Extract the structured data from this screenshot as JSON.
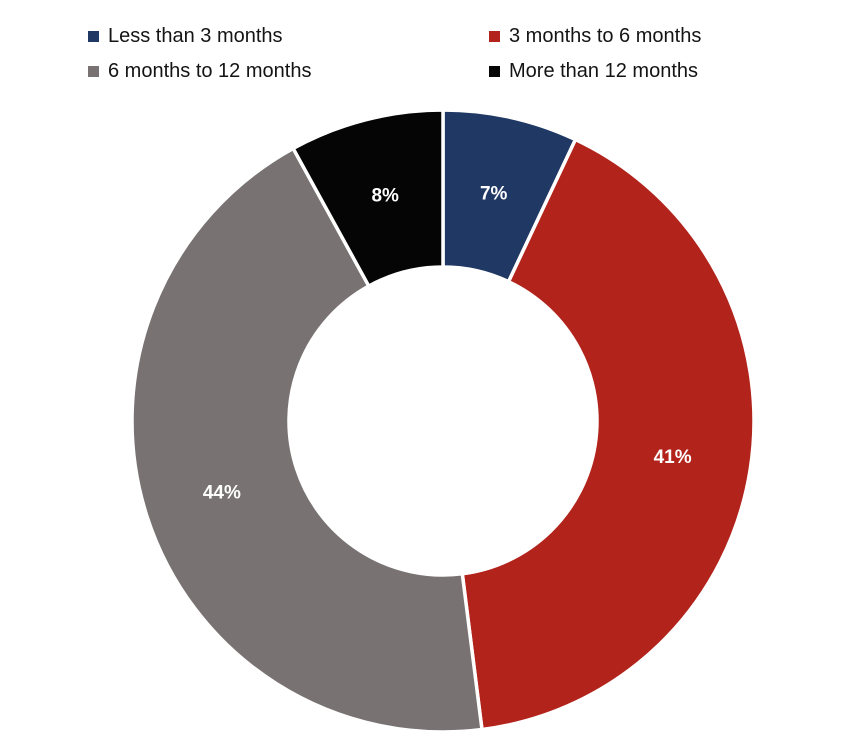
{
  "chart_data": {
    "type": "pie",
    "subtype": "donut",
    "categories": [
      "Less than 3 months",
      "3 months to 6 months",
      "6 months to 12 months",
      "More than 12 months"
    ],
    "values": [
      7,
      41,
      44,
      8
    ],
    "data_labels": [
      "7%",
      "41%",
      "44%",
      "8%"
    ],
    "colors": [
      "#203864",
      "#B2231B",
      "#787272",
      "#050505"
    ],
    "start_angle_deg": 0,
    "direction": "clockwise",
    "hole_ratio": 0.495,
    "separator_color": "#FFFFFF",
    "data_label_color": "#FFFFFF",
    "legend_position": "top",
    "background_color": "#FFFFFF"
  },
  "legend": {
    "items": [
      {
        "label": "Less than 3 months",
        "color": "#203864"
      },
      {
        "label": "3 months to 6 months",
        "color": "#B2231B"
      },
      {
        "label": "6 months to 12 months",
        "color": "#787272"
      },
      {
        "label": "More than 12 months",
        "color": "#050505"
      }
    ]
  }
}
